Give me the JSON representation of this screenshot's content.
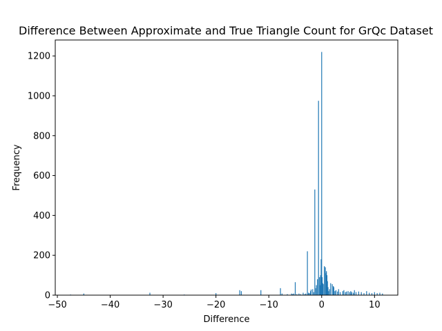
{
  "chart_data": {
    "type": "bar",
    "title": "Difference Between Approximate and True Triangle Count for GrQc Dataset",
    "xlabel": "Difference",
    "ylabel": "Frequency",
    "xlim": [
      -50.4,
      14.4
    ],
    "ylim": [
      0,
      1280
    ],
    "grid": false,
    "legend": "none",
    "bar_color": "#1f77b4",
    "x_ticks": [
      -50,
      -40,
      -30,
      -20,
      -10,
      0,
      10
    ],
    "y_ticks": [
      0,
      200,
      400,
      600,
      800,
      1000,
      1200
    ],
    "x": [
      -47.5,
      -45.0,
      -32.5,
      -26.0,
      -20.0,
      -15.5,
      -15.2,
      -11.5,
      -7.8,
      -7.5,
      -6.5,
      -5.7,
      -5.5,
      -5.3,
      -5.0,
      -4.7,
      -4.3,
      -4.0,
      -3.5,
      -3.2,
      -3.0,
      -2.7,
      -2.5,
      -2.3,
      -2.1,
      -2.0,
      -1.7,
      -1.5,
      -1.3,
      -1.1,
      -1.0,
      -0.8,
      -0.6,
      -0.4,
      -0.3,
      -0.2,
      -0.1,
      0.0,
      0.1,
      0.2,
      0.3,
      0.5,
      0.7,
      0.8,
      0.9,
      1.0,
      1.1,
      1.2,
      1.3,
      1.5,
      1.7,
      2.0,
      2.2,
      2.3,
      2.5,
      2.7,
      3.0,
      3.2,
      3.5,
      4.0,
      4.2,
      4.5,
      4.7,
      5.0,
      5.3,
      5.5,
      5.7,
      6.0,
      6.2,
      6.5,
      7.0,
      7.5,
      8.0,
      8.5,
      9.0,
      9.5,
      10.0,
      10.5,
      11.0,
      11.5
    ],
    "values": [
      3,
      8,
      12,
      3,
      10,
      25,
      20,
      25,
      35,
      8,
      5,
      8,
      5,
      8,
      65,
      5,
      8,
      5,
      12,
      5,
      8,
      220,
      12,
      10,
      20,
      28,
      30,
      15,
      530,
      35,
      50,
      80,
      975,
      90,
      50,
      100,
      180,
      1220,
      90,
      60,
      55,
      145,
      140,
      110,
      120,
      100,
      70,
      40,
      20,
      30,
      60,
      55,
      45,
      40,
      20,
      25,
      18,
      30,
      15,
      20,
      25,
      15,
      18,
      20,
      15,
      20,
      15,
      12,
      25,
      15,
      18,
      15,
      10,
      20,
      12,
      10,
      15,
      10,
      12,
      8
    ]
  }
}
